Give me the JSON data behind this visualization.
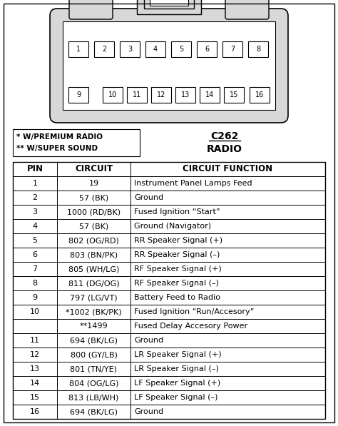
{
  "title_connector": "C262",
  "title_type": "RADIO",
  "legend_lines": [
    "* W/PREMIUM RADIO",
    "** W/SUPER SOUND"
  ],
  "header": [
    "PIN",
    "CIRCUIT",
    "CIRCUIT FUNCTION"
  ],
  "rows": [
    [
      "1",
      "19",
      "Instrument Panel Lamps Feed"
    ],
    [
      "2",
      "57 (BK)",
      "Ground"
    ],
    [
      "3",
      "1000 (RD/BK)",
      "Fused Ignition “Start”"
    ],
    [
      "4",
      "57 (BK)",
      "Ground (Navigator)"
    ],
    [
      "5",
      "802 (OG/RD)",
      "RR Speaker Signal (+)"
    ],
    [
      "6",
      "803 (BN/PK)",
      "RR Speaker Signal (–)"
    ],
    [
      "7",
      "805 (WH/LG)",
      "RF Speaker Signal (+)"
    ],
    [
      "8",
      "811 (DG/OG)",
      "RF Speaker Signal (–)"
    ],
    [
      "9",
      "797 (LG/VT)",
      "Battery Feed to Radio"
    ],
    [
      "10",
      "*1002 (BK/PK)",
      "Fused Ignition “Run/Accesory”"
    ],
    [
      "",
      "**1499",
      "Fused Delay Accesory Power"
    ],
    [
      "11",
      "694 (BK/LG)",
      "Ground"
    ],
    [
      "12",
      "800 (GY/LB)",
      "LR Speaker Signal (+)"
    ],
    [
      "13",
      "801 (TN/YE)",
      "LR Speaker Signal (–)"
    ],
    [
      "14",
      "804 (OG/LG)",
      "LF Speaker Signal (+)"
    ],
    [
      "15",
      "813 (LB/WH)",
      "LF Speaker Signal (–)"
    ],
    [
      "16",
      "694 (BK/LG)",
      "Ground"
    ]
  ],
  "bg_color": "#ffffff",
  "border_color": "#000000",
  "text_color": "#000000",
  "header_font_size": 8.5,
  "row_font_size": 8.0,
  "fig_width": 4.74,
  "fig_height": 5.97
}
